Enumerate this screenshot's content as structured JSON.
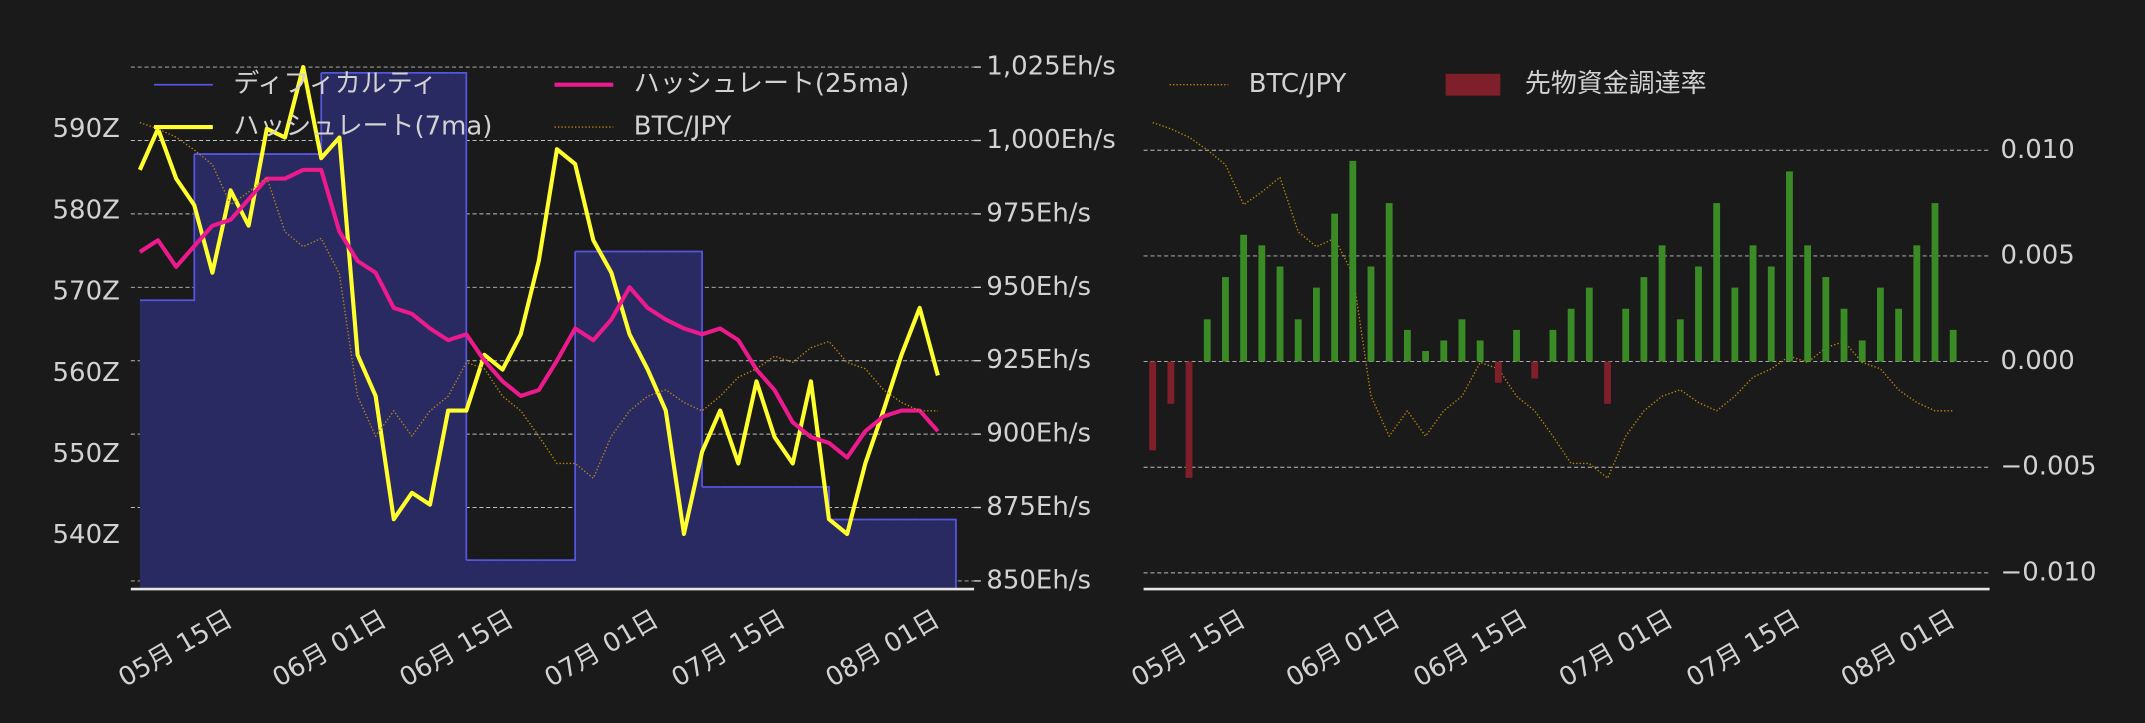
{
  "chart_data": [
    {
      "type": "combo",
      "legend": "upper left",
      "grid": "y2",
      "x": [
        "05-05",
        "05-07",
        "05-09",
        "05-11",
        "05-13",
        "05-15",
        "05-17",
        "05-19",
        "05-21",
        "05-23",
        "05-25",
        "05-27",
        "05-29",
        "05-31",
        "06-02",
        "06-04",
        "06-06",
        "06-08",
        "06-10",
        "06-12",
        "06-14",
        "06-16",
        "06-18",
        "06-20",
        "06-22",
        "06-24",
        "06-26",
        "06-28",
        "06-30",
        "07-02",
        "07-04",
        "07-06",
        "07-08",
        "07-10",
        "07-12",
        "07-14",
        "07-16",
        "07-18",
        "07-20",
        "07-22",
        "07-24",
        "07-26",
        "07-28",
        "07-30",
        "08-01"
      ],
      "xlim": [
        "05-04",
        "08-05"
      ],
      "xticks": [
        {
          "value": "05-15",
          "label": "05月 15日"
        },
        {
          "value": "06-01",
          "label": "06月 01日"
        },
        {
          "value": "06-15",
          "label": "06月 15日"
        },
        {
          "value": "07-01",
          "label": "07月 01日"
        },
        {
          "value": "07-15",
          "label": "07月 15日"
        },
        {
          "value": "08-01",
          "label": "08月 01日"
        }
      ],
      "ylim": [
        533.6,
        598.4
      ],
      "yticks": [
        {
          "value": 540,
          "label": "540Z"
        },
        {
          "value": 550,
          "label": "550Z"
        },
        {
          "value": 560,
          "label": "560Z"
        },
        {
          "value": 570,
          "label": "570Z"
        },
        {
          "value": 580,
          "label": "580Z"
        },
        {
          "value": 590,
          "label": "590Z"
        }
      ],
      "y2lim": [
        847.7,
        1026.9
      ],
      "y2ticks": [
        {
          "value": 850,
          "label": "850Eh/s"
        },
        {
          "value": 875,
          "label": "875Eh/s"
        },
        {
          "value": 900,
          "label": "900Eh/s"
        },
        {
          "value": 925,
          "label": "925Eh/s"
        },
        {
          "value": 950,
          "label": "950Eh/s"
        },
        {
          "value": 975,
          "label": "975Eh/s"
        },
        {
          "value": 1000,
          "label": "1,000Eh/s"
        },
        {
          "value": 1025,
          "label": "1,025Eh/s"
        }
      ],
      "y3lim": [
        14000000,
        16500000
      ],
      "series": [
        {
          "name": "ディフィカルティ",
          "kind": "step-area",
          "color": "#5555e0",
          "fill": "#2a2a62",
          "axis": "y",
          "values": [
            569,
            569,
            569,
            587,
            587,
            587,
            587,
            587,
            587,
            587,
            597,
            597,
            597,
            597,
            597,
            597,
            597,
            597,
            537,
            537,
            537,
            537,
            537,
            537,
            575,
            575,
            575,
            575,
            575,
            575,
            575,
            546,
            546,
            546,
            546,
            546,
            546,
            546,
            542,
            542,
            542,
            542,
            542,
            542,
            542
          ]
        },
        {
          "name": "ハッシュレート(7ma)",
          "kind": "line",
          "color": "#ffff2e",
          "axis": "y2",
          "values": [
            990,
            1004,
            987,
            978,
            955,
            983,
            971,
            1004,
            1001,
            1025,
            994,
            1001,
            927,
            913,
            871,
            880,
            876,
            908,
            908,
            927,
            922,
            934,
            959,
            997,
            992,
            966,
            955,
            934,
            922,
            908,
            866,
            894,
            908,
            890,
            918,
            899,
            890,
            918,
            871,
            866,
            890,
            908,
            927,
            943,
            920
          ]
        },
        {
          "name": "ハッシュレート(25ma)",
          "kind": "line",
          "color": "#ec1a8c",
          "axis": "y2",
          "values": [
            962,
            966,
            957,
            964,
            971,
            973,
            980,
            987,
            987,
            990,
            990,
            969,
            959,
            955,
            943,
            941,
            936,
            932,
            934,
            925,
            918,
            913,
            915,
            925,
            936,
            932,
            939,
            950,
            943,
            939,
            936,
            934,
            936,
            932,
            922,
            915,
            904,
            899,
            897,
            892,
            901,
            906,
            908,
            908,
            901
          ]
        },
        {
          "name": "BTC/JPY",
          "kind": "dotted",
          "color": "#b8860b",
          "axis": "y3",
          "values": [
            16210000,
            16180000,
            16140000,
            16080000,
            16010000,
            15820000,
            15880000,
            15950000,
            15690000,
            15620000,
            15660000,
            15490000,
            14910000,
            14720000,
            14840000,
            14720000,
            14840000,
            14910000,
            15070000,
            15040000,
            14910000,
            14840000,
            14720000,
            14590000,
            14590000,
            14520000,
            14720000,
            14840000,
            14910000,
            14940000,
            14880000,
            14840000,
            14910000,
            15000000,
            15040000,
            15100000,
            15070000,
            15140000,
            15170000,
            15070000,
            15040000,
            14940000,
            14880000,
            14840000,
            14840000
          ]
        }
      ]
    },
    {
      "type": "bar",
      "legend": "upper left",
      "grid": "y",
      "yaxis_side": "right",
      "x": [
        "05-05",
        "05-07",
        "05-09",
        "05-11",
        "05-13",
        "05-15",
        "05-17",
        "05-19",
        "05-21",
        "05-23",
        "05-25",
        "05-27",
        "05-29",
        "05-31",
        "06-02",
        "06-04",
        "06-06",
        "06-08",
        "06-10",
        "06-12",
        "06-14",
        "06-16",
        "06-18",
        "06-20",
        "06-22",
        "06-24",
        "06-26",
        "06-28",
        "06-30",
        "07-02",
        "07-04",
        "07-06",
        "07-08",
        "07-10",
        "07-12",
        "07-14",
        "07-16",
        "07-18",
        "07-20",
        "07-22",
        "07-24",
        "07-26",
        "07-28",
        "07-30",
        "08-01"
      ],
      "xlim": [
        "05-04",
        "08-05"
      ],
      "xticks": [
        {
          "value": "05-15",
          "label": "05月 15日"
        },
        {
          "value": "06-01",
          "label": "06月 01日"
        },
        {
          "value": "06-15",
          "label": "06月 15日"
        },
        {
          "value": "07-01",
          "label": "07月 01日"
        },
        {
          "value": "07-15",
          "label": "07月 15日"
        },
        {
          "value": "08-01",
          "label": "08月 01日"
        }
      ],
      "ylim": [
        -0.0107,
        0.0142
      ],
      "yticks": [
        {
          "value": -0.01,
          "label": "−0.010"
        },
        {
          "value": -0.005,
          "label": "−0.005"
        },
        {
          "value": 0,
          "label": "0.000"
        },
        {
          "value": 0.005,
          "label": "0.005"
        },
        {
          "value": 0.01,
          "label": "0.010"
        }
      ],
      "y3lim": [
        14000000,
        16500000
      ],
      "series": [
        {
          "name": "BTC/JPY",
          "kind": "dotted",
          "color": "#b8860b",
          "axis": "y3",
          "values": [
            16210000,
            16180000,
            16140000,
            16080000,
            16010000,
            15820000,
            15880000,
            15950000,
            15690000,
            15620000,
            15660000,
            15490000,
            14910000,
            14720000,
            14840000,
            14720000,
            14840000,
            14910000,
            15070000,
            15040000,
            14910000,
            14840000,
            14720000,
            14590000,
            14590000,
            14520000,
            14720000,
            14840000,
            14910000,
            14940000,
            14880000,
            14840000,
            14910000,
            15000000,
            15040000,
            15100000,
            15070000,
            15140000,
            15170000,
            15070000,
            15040000,
            14940000,
            14880000,
            14840000,
            14840000
          ]
        },
        {
          "name": "先物資金調達率",
          "kind": "bar",
          "color": "#7f1f2a",
          "color_positive": "#3a8a25",
          "axis": "y",
          "values": [
            -0.0042,
            -0.002,
            -0.0055,
            0.002,
            0.004,
            0.006,
            0.0055,
            0.0045,
            0.002,
            0.0035,
            0.007,
            0.0095,
            0.0045,
            0.0075,
            0.0015,
            0.0005,
            0.001,
            0.002,
            0.001,
            -0.001,
            0.0015,
            -0.0008,
            0.0015,
            0.0025,
            0.0035,
            -0.002,
            0.0025,
            0.004,
            0.0055,
            0.002,
            0.0045,
            0.0075,
            0.0035,
            0.0055,
            0.0045,
            0.009,
            0.0055,
            0.004,
            0.0025,
            0.001,
            0.0035,
            0.0025,
            0.0055,
            0.0075,
            0.0015
          ]
        }
      ]
    }
  ]
}
